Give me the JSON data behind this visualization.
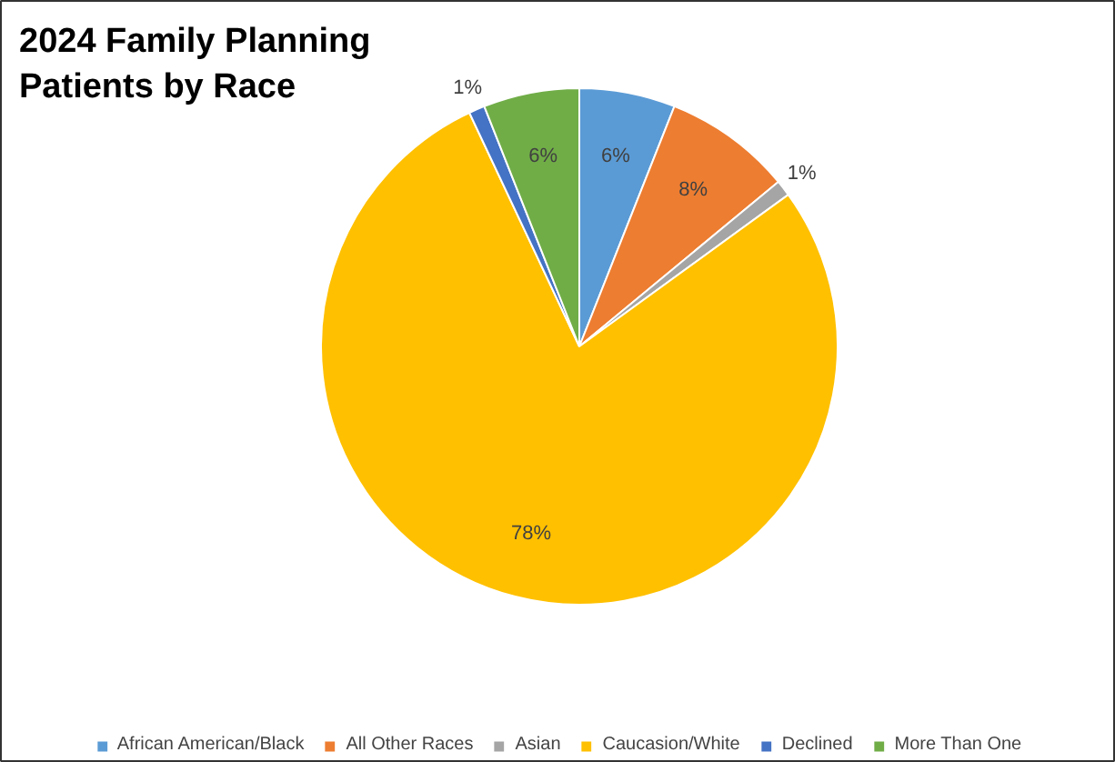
{
  "chart_data": {
    "type": "pie",
    "title": "2024 Family Planning Patients by Race",
    "categories": [
      "African American/Black",
      "All Other Races",
      "Asian",
      "Caucasion/White",
      "Declined",
      "More Than One"
    ],
    "values": [
      6,
      8,
      1,
      78,
      1,
      6
    ],
    "colors": [
      "#5b9bd5",
      "#ed7d31",
      "#a5a5a5",
      "#ffc000",
      "#4472c4",
      "#70ad47"
    ],
    "value_labels": [
      "6%",
      "8%",
      "1%",
      "78%",
      "1%",
      "6%"
    ],
    "legend": "bottom"
  }
}
